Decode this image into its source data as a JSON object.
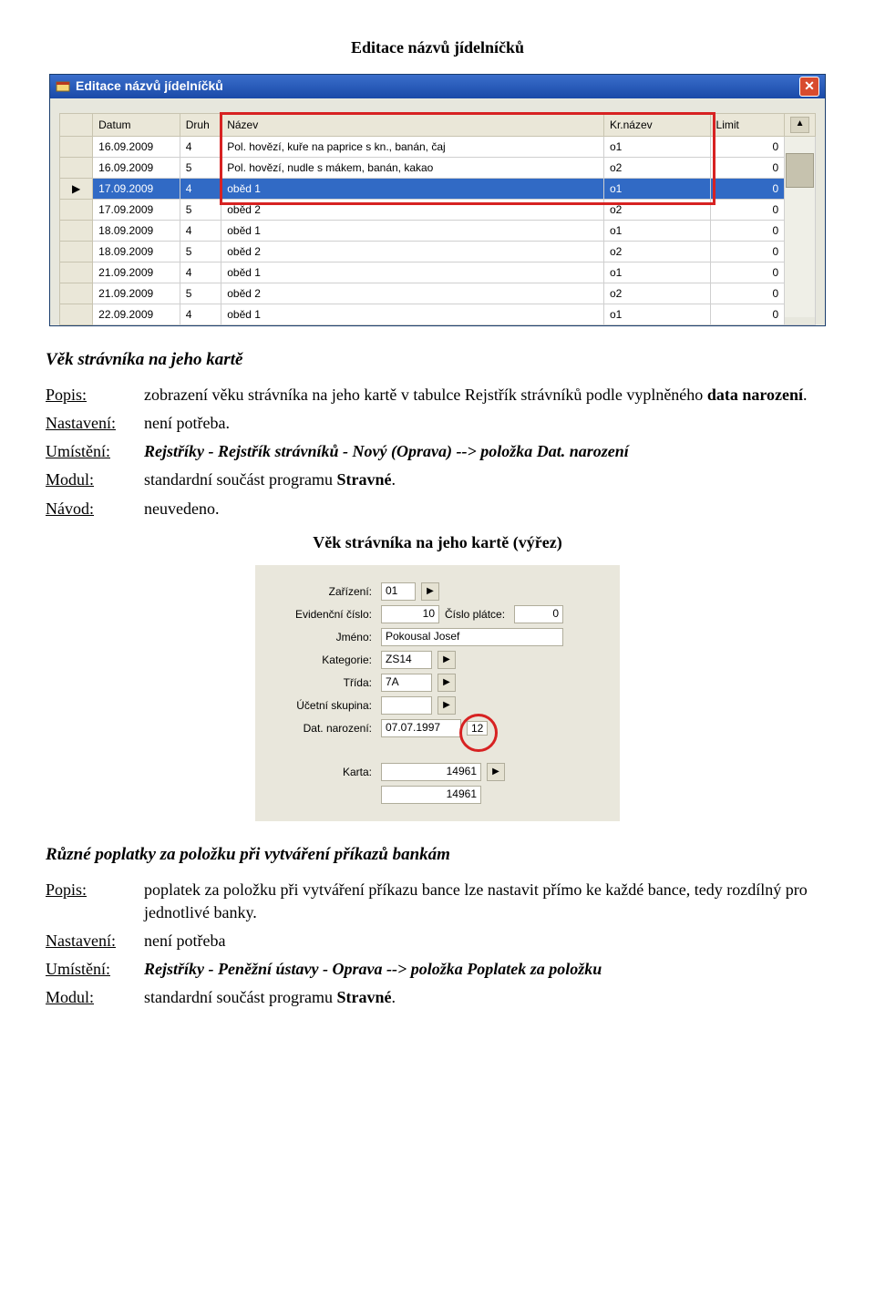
{
  "doc": {
    "title1": "Editace názvů jídelníčků",
    "title2": "Věk strávníka na jeho kartě",
    "caption2": "Věk strávníka na jeho kartě (výřez)",
    "title3": "Různé poplatky za položku při vytváření příkazů bankám"
  },
  "section1": {
    "popis_label": "Popis:",
    "popis_value_a": "zobrazení věku strávníka na jeho kartě v tabulce Rejstřík strávníků podle vyplněného ",
    "popis_value_b": "data narození",
    "nastaveni_label": "Nastavení:",
    "nastaveni_value": " není potřeba.",
    "umisteni_label": "Umístění:",
    "umisteni_value_a": "Rejstříky - Rejstřík strávníků - Nový (Oprava) --> položka ",
    "umisteni_value_b": "Dat. narození",
    "modul_label": "Modul:",
    "modul_value_a": "standardní součást programu ",
    "modul_value_b": "Stravné",
    "navod_label": "Návod:",
    "navod_value": "neuvedeno."
  },
  "section2": {
    "popis_label": "Popis:",
    "popis_value": "poplatek za položku při vytváření příkazu bance lze nastavit přímo ke každé bance, tedy rozdílný pro jednotlivé banky.",
    "nastaveni_label": "Nastavení:",
    "nastaveni_value": " není potřeba",
    "umisteni_label": "Umístění:",
    "umisteni_value_a": "Rejstříky - Peněžní ústavy - Oprava --> položka ",
    "umisteni_value_b": "Poplatek za položku",
    "modul_label": "Modul:",
    "modul_value_a": "standardní součást programu ",
    "modul_value_b": "Stravné"
  },
  "win1": {
    "title": "Editace názvů jídelníčků",
    "columns": [
      "",
      "Datum",
      "Druh",
      "Název",
      "Kr.název",
      "Limit",
      ""
    ],
    "col_widths": [
      "18px",
      "82px",
      "38px",
      "360px",
      "100px",
      "70px",
      "16px"
    ],
    "rows": [
      {
        "gutter": "",
        "date": "16.09.2009",
        "druh": "4",
        "nazev": "Pol. hovězí, kuře na paprice s kn., banán, čaj",
        "kr": "o1",
        "limit": "0"
      },
      {
        "gutter": "",
        "date": "16.09.2009",
        "druh": "5",
        "nazev": "Pol. hovězí, nudle s mákem, banán, kakao",
        "kr": "o2",
        "limit": "0"
      },
      {
        "gutter": "▶",
        "date": "17.09.2009",
        "druh": "4",
        "nazev": "oběd 1",
        "kr": "o1",
        "limit": "0",
        "selected": true
      },
      {
        "gutter": "",
        "date": "17.09.2009",
        "druh": "5",
        "nazev": "oběd 2",
        "kr": "o2",
        "limit": "0"
      },
      {
        "gutter": "",
        "date": "18.09.2009",
        "druh": "4",
        "nazev": "oběd 1",
        "kr": "o1",
        "limit": "0"
      },
      {
        "gutter": "",
        "date": "18.09.2009",
        "druh": "5",
        "nazev": "oběd 2",
        "kr": "o2",
        "limit": "0"
      },
      {
        "gutter": "",
        "date": "21.09.2009",
        "druh": "4",
        "nazev": "oběd 1",
        "kr": "o1",
        "limit": "0"
      },
      {
        "gutter": "",
        "date": "21.09.2009",
        "druh": "5",
        "nazev": "oběd 2",
        "kr": "o2",
        "limit": "0"
      },
      {
        "gutter": "",
        "date": "22.09.2009",
        "druh": "4",
        "nazev": "oběd 1",
        "kr": "o1",
        "limit": "0"
      }
    ]
  },
  "win2": {
    "zarizeni_label": "Zařízení",
    "zarizeni_value": "01",
    "evcislo_label": "Evidenční číslo",
    "evcislo_value": "10",
    "cisloplatce_label": "Číslo plátce",
    "cisloplatce_value": "0",
    "jmeno_label": "Jméno",
    "jmeno_value": "Pokousal Josef",
    "kategorie_label": "Kategorie",
    "kategorie_value": "ZS14",
    "trida_label": "Třída",
    "trida_value": "7A",
    "ucsk_label": "Účetní skupina",
    "ucsk_value": "",
    "datnar_label": "Dat. narození",
    "datnar_value": "07.07.1997",
    "age_value": "12",
    "karta_label": "Karta",
    "karta_value1": "14961",
    "karta_value2": "14961"
  },
  "icons": {
    "close": "✕",
    "play": "▶",
    "up": "▲",
    "down": "▼"
  }
}
